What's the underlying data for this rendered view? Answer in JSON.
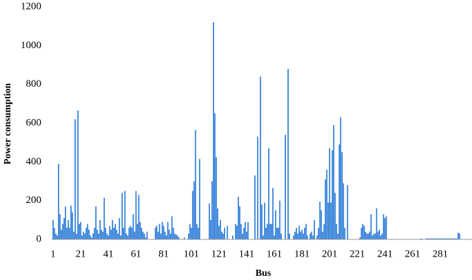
{
  "chart_data": {
    "type": "bar",
    "x_label": "Bus",
    "y_label": "Power consumption",
    "color": "#1f74d6",
    "xlim": [
      0,
      304
    ],
    "xticks": [
      1,
      21,
      41,
      61,
      81,
      101,
      121,
      141,
      161,
      181,
      201,
      221,
      241,
      261,
      281
    ],
    "ylim": [
      0,
      1200
    ],
    "yticks": [
      0,
      200,
      400,
      600,
      800,
      1000,
      1200
    ],
    "x": [
      1,
      2,
      3,
      4,
      5,
      6,
      7,
      8,
      9,
      10,
      11,
      12,
      13,
      14,
      15,
      16,
      17,
      18,
      19,
      20,
      21,
      22,
      23,
      24,
      25,
      26,
      27,
      28,
      29,
      30,
      31,
      32,
      33,
      34,
      35,
      36,
      37,
      38,
      39,
      40,
      41,
      42,
      43,
      44,
      45,
      46,
      47,
      48,
      49,
      50,
      51,
      52,
      53,
      54,
      55,
      56,
      57,
      58,
      59,
      60,
      61,
      62,
      63,
      64,
      65,
      66,
      67,
      68,
      69,
      70,
      71,
      72,
      73,
      74,
      75,
      76,
      77,
      78,
      79,
      80,
      81,
      82,
      83,
      84,
      85,
      86,
      87,
      88,
      89,
      90,
      91,
      92,
      93,
      94,
      95,
      96,
      97,
      98,
      99,
      100,
      101,
      102,
      103,
      104,
      105,
      106,
      107,
      108,
      109,
      110,
      111,
      112,
      113,
      114,
      115,
      116,
      117,
      118,
      119,
      120,
      121,
      122,
      123,
      124,
      125,
      126,
      127,
      128,
      129,
      130,
      131,
      132,
      133,
      134,
      135,
      136,
      137,
      138,
      139,
      140,
      141,
      142,
      143,
      144,
      145,
      146,
      147,
      148,
      149,
      150,
      151,
      152,
      153,
      154,
      155,
      156,
      157,
      158,
      159,
      160,
      161,
      162,
      163,
      164,
      165,
      166,
      167,
      168,
      169,
      170,
      171,
      172,
      173,
      174,
      175,
      176,
      177,
      178,
      179,
      180,
      181,
      182,
      183,
      184,
      185,
      186,
      187,
      188,
      189,
      190,
      191,
      192,
      193,
      194,
      195,
      196,
      197,
      198,
      199,
      200,
      201,
      202,
      203,
      204,
      205,
      206,
      207,
      208,
      209,
      210,
      211,
      212,
      213,
      214,
      215,
      216,
      217,
      218,
      219,
      220,
      221,
      222,
      223,
      224,
      225,
      226,
      227,
      228,
      229,
      230,
      231,
      232,
      233,
      234,
      235,
      236,
      237,
      238,
      239,
      240,
      241,
      242,
      243,
      244,
      245,
      246,
      247,
      248,
      249,
      250,
      251,
      252,
      253,
      254,
      255,
      256,
      257,
      258,
      259,
      260,
      261,
      262,
      263,
      264,
      265,
      266,
      267,
      268,
      269,
      270,
      271,
      272,
      273,
      274,
      275,
      276,
      277,
      278,
      279,
      280,
      281,
      282,
      283,
      284,
      285,
      286,
      287,
      288,
      289,
      290,
      291,
      292,
      293,
      294,
      295,
      296,
      297,
      298,
      299,
      300
    ],
    "values": [
      100,
      60,
      30,
      20,
      390,
      130,
      50,
      80,
      110,
      170,
      60,
      100,
      60,
      175,
      140,
      40,
      620,
      30,
      665,
      80,
      90,
      20,
      40,
      30,
      60,
      80,
      50,
      20,
      10,
      30,
      60,
      170,
      50,
      30,
      100,
      50,
      40,
      215,
      60,
      30,
      20,
      70,
      50,
      100,
      60,
      80,
      50,
      30,
      110,
      20,
      240,
      60,
      250,
      30,
      20,
      60,
      70,
      60,
      130,
      40,
      250,
      80,
      230,
      90,
      60,
      40,
      30,
      10,
      40,
      0,
      0,
      0,
      0,
      0,
      60,
      70,
      40,
      80,
      30,
      90,
      70,
      40,
      20,
      90,
      50,
      30,
      120,
      60,
      30,
      25,
      20,
      10,
      0,
      0,
      0,
      10,
      0,
      0,
      30,
      80,
      60,
      250,
      300,
      565,
      80,
      60,
      415,
      0,
      0,
      0,
      0,
      0,
      0,
      185,
      100,
      300,
      1120,
      650,
      425,
      160,
      70,
      100,
      40,
      30,
      60,
      0,
      70,
      0,
      0,
      0,
      20,
      0,
      80,
      70,
      220,
      170,
      80,
      30,
      60,
      90,
      40,
      90,
      0,
      0,
      0,
      0,
      330,
      0,
      530,
      0,
      840,
      180,
      20,
      190,
      60,
      80,
      470,
      80,
      80,
      265,
      20,
      150,
      60,
      60,
      200,
      30,
      0,
      0,
      540,
      0,
      880,
      30,
      0,
      0,
      20,
      40,
      60,
      30,
      70,
      40,
      50,
      30,
      60,
      80,
      20,
      0,
      30,
      40,
      20,
      100,
      0,
      20,
      60,
      195,
      150,
      40,
      80,
      310,
      360,
      190,
      470,
      190,
      460,
      590,
      240,
      80,
      30,
      490,
      630,
      450,
      290,
      60,
      0,
      280,
      0,
      0,
      0,
      0,
      0,
      0,
      0,
      0,
      10,
      60,
      80,
      70,
      40,
      30,
      30,
      40,
      130,
      20,
      30,
      30,
      160,
      40,
      50,
      20,
      30,
      130,
      110,
      120,
      0,
      0,
      2,
      2,
      2,
      2,
      2,
      2,
      2,
      2,
      2,
      2,
      2,
      2,
      2,
      2,
      2,
      2,
      2,
      2,
      2,
      2,
      2,
      2,
      5,
      3,
      2,
      2,
      5,
      5,
      5,
      5,
      5,
      5,
      5,
      5,
      5,
      5,
      5,
      5,
      5,
      5,
      5,
      5,
      5,
      5,
      5,
      5,
      5,
      5,
      5,
      35,
      30,
      2,
      2,
      2,
      2,
      2
    ]
  }
}
